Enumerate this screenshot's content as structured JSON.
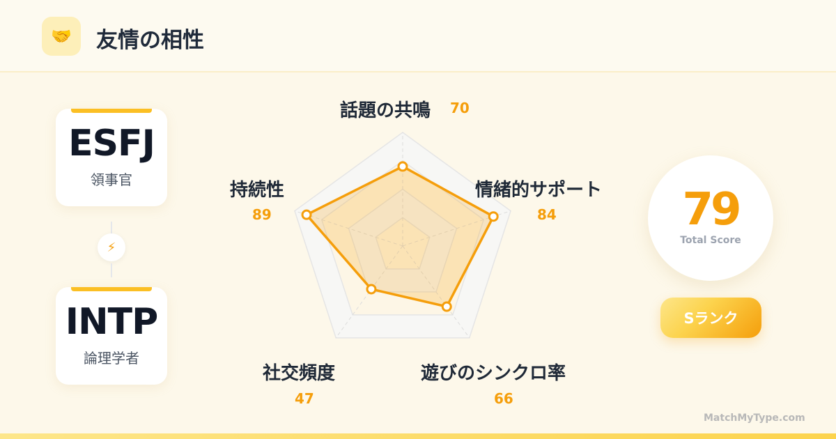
{
  "header": {
    "icon": "handshake-icon",
    "title": "友情の相性"
  },
  "pair": [
    {
      "type": "ESFJ",
      "role": "領事官"
    },
    {
      "type": "INTP",
      "role": "論理学者"
    }
  ],
  "connector_icon": "lightning-icon",
  "chart_data": {
    "type": "radar",
    "max": 100,
    "axes": [
      {
        "label": "話題の共鳴",
        "value": 70
      },
      {
        "label": "情緒的サポート",
        "value": 84
      },
      {
        "label": "遊びのシンクロ率",
        "value": 66
      },
      {
        "label": "社交頻度",
        "value": 47
      },
      {
        "label": "持続性",
        "value": 89
      }
    ],
    "color": "#f59e0b"
  },
  "score": {
    "value": "79",
    "label": "Total Score"
  },
  "rank": "Sランク",
  "footer": "MatchMyType.com"
}
